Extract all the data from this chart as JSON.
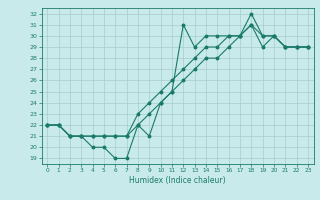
{
  "line1_x": [
    0,
    1,
    2,
    3,
    4,
    5,
    6,
    7,
    8,
    9,
    10,
    11,
    12,
    13,
    14,
    15,
    16,
    17,
    18,
    19,
    20,
    21,
    22,
    23
  ],
  "line1_y": [
    22,
    22,
    21,
    21,
    20,
    20,
    19,
    19,
    22,
    21,
    24,
    25,
    31,
    29,
    30,
    30,
    30,
    30,
    32,
    30,
    30,
    29,
    29,
    29
  ],
  "line2_x": [
    0,
    1,
    2,
    3,
    4,
    5,
    6,
    7,
    8,
    9,
    10,
    11,
    12,
    13,
    14,
    15,
    16,
    17,
    18,
    19,
    20,
    21,
    22,
    23
  ],
  "line2_y": [
    22,
    22,
    21,
    21,
    21,
    21,
    21,
    21,
    23,
    24,
    25,
    26,
    27,
    28,
    29,
    29,
    30,
    30,
    31,
    30,
    30,
    29,
    29,
    29
  ],
  "line3_x": [
    0,
    1,
    2,
    3,
    4,
    5,
    6,
    7,
    8,
    9,
    10,
    11,
    12,
    13,
    14,
    15,
    16,
    17,
    18,
    19,
    20,
    21,
    22,
    23
  ],
  "line3_y": [
    22,
    22,
    21,
    21,
    21,
    21,
    21,
    21,
    22,
    23,
    24,
    25,
    26,
    27,
    28,
    28,
    29,
    30,
    31,
    29,
    30,
    29,
    29,
    29
  ],
  "line_color": "#1a7a6a",
  "bg_color": "#c8eaea",
  "grid_color": "#a8cccc",
  "xlabel": "Humidex (Indice chaleur)",
  "xlim": [
    -0.5,
    23.5
  ],
  "ylim": [
    18.5,
    32.5
  ],
  "yticks": [
    19,
    20,
    21,
    22,
    23,
    24,
    25,
    26,
    27,
    28,
    29,
    30,
    31,
    32
  ],
  "xticks": [
    0,
    1,
    2,
    3,
    4,
    5,
    6,
    7,
    8,
    9,
    10,
    11,
    12,
    13,
    14,
    15,
    16,
    17,
    18,
    19,
    20,
    21,
    22,
    23
  ]
}
